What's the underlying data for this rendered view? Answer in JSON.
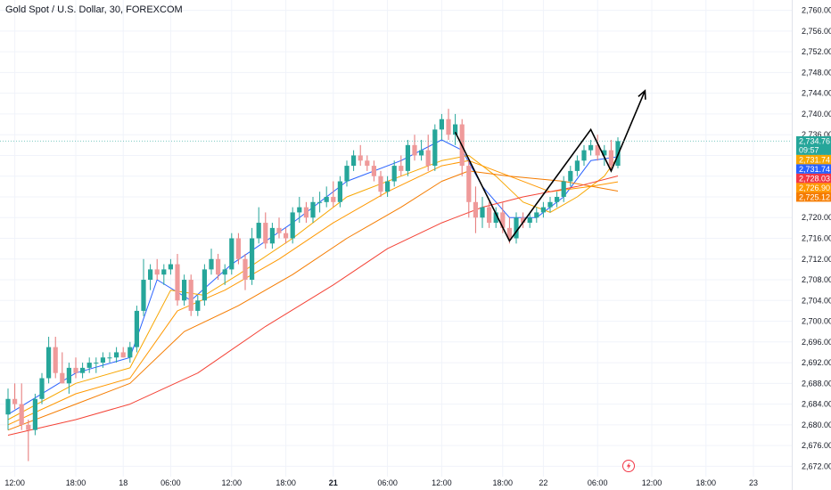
{
  "header": {
    "title": "Gold Spot / U.S. Dollar, 30, FOREXCOM"
  },
  "chart_data": {
    "type": "candlestick",
    "title": "Gold Spot / U.S. Dollar, 30, FOREXCOM",
    "ylim": [
      2670,
      2762
    ],
    "xlim": [
      0,
      102
    ],
    "y_ticks": [
      2672,
      2676,
      2680,
      2684,
      2688,
      2692,
      2696,
      2700,
      2704,
      2708,
      2712,
      2716,
      2720,
      2724,
      2728,
      2732,
      2736,
      2740,
      2744,
      2748,
      2752,
      2756,
      2760
    ],
    "y_tick_labels": [
      "2,672.00",
      "2,676.00",
      "2,680.00",
      "2,684.00",
      "2,688.00",
      "2,692.00",
      "2,696.00",
      "2,700.00",
      "2,704.00",
      "2,708.00",
      "2,712.00",
      "2,716.00",
      "2,720.00",
      "2,724.00",
      "2,728.00",
      "2,732.00",
      "2,736.00",
      "2,740.00",
      "2,744.00",
      "2,748.00",
      "2,752.00",
      "2,756.00",
      "2,760.00"
    ],
    "x_ticks": [
      {
        "x": 1,
        "label": "12:00",
        "bold": false
      },
      {
        "x": 10,
        "label": "18:00",
        "bold": false
      },
      {
        "x": 17,
        "label": "18",
        "bold": false
      },
      {
        "x": 24,
        "label": "06:00",
        "bold": false
      },
      {
        "x": 33,
        "label": "12:00",
        "bold": false
      },
      {
        "x": 41,
        "label": "18:00",
        "bold": false
      },
      {
        "x": 48,
        "label": "21",
        "bold": true
      },
      {
        "x": 56,
        "label": "06:00",
        "bold": false
      },
      {
        "x": 64,
        "label": "12:00",
        "bold": false
      },
      {
        "x": 73,
        "label": "18:00",
        "bold": false
      },
      {
        "x": 79,
        "label": "22",
        "bold": false
      },
      {
        "x": 87,
        "label": "06:00",
        "bold": false
      },
      {
        "x": 95,
        "label": "12:00",
        "bold": false
      },
      {
        "x": 103,
        "label": "18:00",
        "bold": false
      },
      {
        "x": 110,
        "label": "23",
        "bold": false
      }
    ],
    "candles": [
      {
        "x": 0,
        "o": 2682,
        "h": 2687,
        "l": 2679,
        "c": 2685
      },
      {
        "x": 1,
        "o": 2685,
        "h": 2688,
        "l": 2683,
        "c": 2684
      },
      {
        "x": 2,
        "o": 2684,
        "h": 2688,
        "l": 2679,
        "c": 2680
      },
      {
        "x": 3,
        "o": 2680,
        "h": 2681,
        "l": 2673,
        "c": 2679
      },
      {
        "x": 4,
        "o": 2679,
        "h": 2686,
        "l": 2678,
        "c": 2685
      },
      {
        "x": 5,
        "o": 2685,
        "h": 2690,
        "l": 2684,
        "c": 2689
      },
      {
        "x": 6,
        "o": 2689,
        "h": 2697,
        "l": 2688,
        "c": 2695
      },
      {
        "x": 7,
        "o": 2695,
        "h": 2697,
        "l": 2689,
        "c": 2690
      },
      {
        "x": 8,
        "o": 2690,
        "h": 2694,
        "l": 2688,
        "c": 2688
      },
      {
        "x": 9,
        "o": 2688,
        "h": 2692,
        "l": 2686,
        "c": 2691
      },
      {
        "x": 10,
        "o": 2691,
        "h": 2693,
        "l": 2689,
        "c": 2690
      },
      {
        "x": 11,
        "o": 2690,
        "h": 2692,
        "l": 2689,
        "c": 2691
      },
      {
        "x": 12,
        "o": 2691,
        "h": 2693,
        "l": 2690,
        "c": 2692
      },
      {
        "x": 13,
        "o": 2692,
        "h": 2693,
        "l": 2690,
        "c": 2692
      },
      {
        "x": 14,
        "o": 2692,
        "h": 2694,
        "l": 2691,
        "c": 2693
      },
      {
        "x": 15,
        "o": 2693,
        "h": 2694,
        "l": 2692,
        "c": 2693
      },
      {
        "x": 16,
        "o": 2693,
        "h": 2695,
        "l": 2692,
        "c": 2694
      },
      {
        "x": 17,
        "o": 2694,
        "h": 2695,
        "l": 2693,
        "c": 2693
      },
      {
        "x": 18,
        "o": 2693,
        "h": 2696,
        "l": 2692,
        "c": 2695
      },
      {
        "x": 19,
        "o": 2695,
        "h": 2703,
        "l": 2694,
        "c": 2702
      },
      {
        "x": 20,
        "o": 2702,
        "h": 2712,
        "l": 2701,
        "c": 2708
      },
      {
        "x": 21,
        "o": 2708,
        "h": 2711,
        "l": 2706,
        "c": 2710
      },
      {
        "x": 22,
        "o": 2710,
        "h": 2712,
        "l": 2708,
        "c": 2709
      },
      {
        "x": 23,
        "o": 2709,
        "h": 2711,
        "l": 2707,
        "c": 2710
      },
      {
        "x": 24,
        "o": 2710,
        "h": 2712,
        "l": 2709,
        "c": 2711
      },
      {
        "x": 25,
        "o": 2711,
        "h": 2713,
        "l": 2703,
        "c": 2704
      },
      {
        "x": 26,
        "o": 2704,
        "h": 2709,
        "l": 2703,
        "c": 2708
      },
      {
        "x": 27,
        "o": 2708,
        "h": 2709,
        "l": 2701,
        "c": 2702
      },
      {
        "x": 28,
        "o": 2702,
        "h": 2705,
        "l": 2701,
        "c": 2704
      },
      {
        "x": 29,
        "o": 2704,
        "h": 2711,
        "l": 2703,
        "c": 2710
      },
      {
        "x": 30,
        "o": 2710,
        "h": 2714,
        "l": 2709,
        "c": 2712
      },
      {
        "x": 31,
        "o": 2712,
        "h": 2713,
        "l": 2708,
        "c": 2709
      },
      {
        "x": 32,
        "o": 2709,
        "h": 2711,
        "l": 2707,
        "c": 2710
      },
      {
        "x": 33,
        "o": 2710,
        "h": 2717,
        "l": 2709,
        "c": 2716
      },
      {
        "x": 34,
        "o": 2716,
        "h": 2717,
        "l": 2711,
        "c": 2712
      },
      {
        "x": 35,
        "o": 2712,
        "h": 2713,
        "l": 2706,
        "c": 2708
      },
      {
        "x": 36,
        "o": 2708,
        "h": 2718,
        "l": 2707,
        "c": 2716
      },
      {
        "x": 37,
        "o": 2716,
        "h": 2722,
        "l": 2715,
        "c": 2719
      },
      {
        "x": 38,
        "o": 2719,
        "h": 2721,
        "l": 2714,
        "c": 2715
      },
      {
        "x": 39,
        "o": 2715,
        "h": 2719,
        "l": 2714,
        "c": 2718
      },
      {
        "x": 40,
        "o": 2718,
        "h": 2720,
        "l": 2716,
        "c": 2717
      },
      {
        "x": 41,
        "o": 2717,
        "h": 2718,
        "l": 2715,
        "c": 2716
      },
      {
        "x": 42,
        "o": 2716,
        "h": 2722,
        "l": 2715,
        "c": 2721
      },
      {
        "x": 43,
        "o": 2721,
        "h": 2724,
        "l": 2719,
        "c": 2722
      },
      {
        "x": 44,
        "o": 2722,
        "h": 2723,
        "l": 2719,
        "c": 2720
      },
      {
        "x": 45,
        "o": 2720,
        "h": 2724,
        "l": 2719,
        "c": 2723
      },
      {
        "x": 46,
        "o": 2723,
        "h": 2725,
        "l": 2721,
        "c": 2723
      },
      {
        "x": 47,
        "o": 2723,
        "h": 2726,
        "l": 2722,
        "c": 2724
      },
      {
        "x": 48,
        "o": 2724,
        "h": 2727,
        "l": 2722,
        "c": 2723
      },
      {
        "x": 49,
        "o": 2723,
        "h": 2728,
        "l": 2722,
        "c": 2727
      },
      {
        "x": 50,
        "o": 2727,
        "h": 2731,
        "l": 2726,
        "c": 2730
      },
      {
        "x": 51,
        "o": 2730,
        "h": 2733,
        "l": 2729,
        "c": 2732
      },
      {
        "x": 52,
        "o": 2732,
        "h": 2734,
        "l": 2730,
        "c": 2731
      },
      {
        "x": 53,
        "o": 2731,
        "h": 2732,
        "l": 2729,
        "c": 2730
      },
      {
        "x": 54,
        "o": 2730,
        "h": 2731,
        "l": 2727,
        "c": 2728
      },
      {
        "x": 55,
        "o": 2728,
        "h": 2729,
        "l": 2724,
        "c": 2725
      },
      {
        "x": 56,
        "o": 2725,
        "h": 2728,
        "l": 2724,
        "c": 2727
      },
      {
        "x": 57,
        "o": 2727,
        "h": 2731,
        "l": 2726,
        "c": 2730
      },
      {
        "x": 58,
        "o": 2730,
        "h": 2732,
        "l": 2728,
        "c": 2729
      },
      {
        "x": 59,
        "o": 2729,
        "h": 2735,
        "l": 2728,
        "c": 2734
      },
      {
        "x": 60,
        "o": 2734,
        "h": 2736,
        "l": 2731,
        "c": 2732
      },
      {
        "x": 61,
        "o": 2732,
        "h": 2735,
        "l": 2731,
        "c": 2733
      },
      {
        "x": 62,
        "o": 2733,
        "h": 2736,
        "l": 2729,
        "c": 2730
      },
      {
        "x": 63,
        "o": 2730,
        "h": 2738,
        "l": 2729,
        "c": 2737
      },
      {
        "x": 64,
        "o": 2737,
        "h": 2740,
        "l": 2735,
        "c": 2739
      },
      {
        "x": 65,
        "o": 2739,
        "h": 2741,
        "l": 2735,
        "c": 2736
      },
      {
        "x": 66,
        "o": 2736,
        "h": 2740,
        "l": 2734,
        "c": 2738
      },
      {
        "x": 67,
        "o": 2738,
        "h": 2739,
        "l": 2728,
        "c": 2730
      },
      {
        "x": 68,
        "o": 2730,
        "h": 2731,
        "l": 2720,
        "c": 2723
      },
      {
        "x": 69,
        "o": 2723,
        "h": 2726,
        "l": 2717,
        "c": 2720
      },
      {
        "x": 70,
        "o": 2720,
        "h": 2724,
        "l": 2718,
        "c": 2722
      },
      {
        "x": 71,
        "o": 2722,
        "h": 2723,
        "l": 2718,
        "c": 2719
      },
      {
        "x": 72,
        "o": 2719,
        "h": 2722,
        "l": 2718,
        "c": 2721
      },
      {
        "x": 73,
        "o": 2721,
        "h": 2723,
        "l": 2717,
        "c": 2718
      },
      {
        "x": 74,
        "o": 2718,
        "h": 2720,
        "l": 2715,
        "c": 2716
      },
      {
        "x": 75,
        "o": 2716,
        "h": 2721,
        "l": 2715,
        "c": 2720
      },
      {
        "x": 76,
        "o": 2720,
        "h": 2721,
        "l": 2718,
        "c": 2719
      },
      {
        "x": 77,
        "o": 2719,
        "h": 2721,
        "l": 2718,
        "c": 2720
      },
      {
        "x": 78,
        "o": 2720,
        "h": 2722,
        "l": 2719,
        "c": 2721
      },
      {
        "x": 79,
        "o": 2721,
        "h": 2723,
        "l": 2720,
        "c": 2722
      },
      {
        "x": 80,
        "o": 2722,
        "h": 2724,
        "l": 2721,
        "c": 2723
      },
      {
        "x": 81,
        "o": 2723,
        "h": 2725,
        "l": 2722,
        "c": 2724
      },
      {
        "x": 82,
        "o": 2724,
        "h": 2728,
        "l": 2723,
        "c": 2727
      },
      {
        "x": 83,
        "o": 2727,
        "h": 2730,
        "l": 2726,
        "c": 2729
      },
      {
        "x": 84,
        "o": 2729,
        "h": 2732,
        "l": 2728,
        "c": 2731
      },
      {
        "x": 85,
        "o": 2731,
        "h": 2734,
        "l": 2730,
        "c": 2733
      },
      {
        "x": 86,
        "o": 2733,
        "h": 2735,
        "l": 2732,
        "c": 2734
      },
      {
        "x": 87,
        "o": 2734,
        "h": 2736,
        "l": 2731,
        "c": 2732
      },
      {
        "x": 88,
        "o": 2732,
        "h": 2734,
        "l": 2730,
        "c": 2733
      },
      {
        "x": 89,
        "o": 2733,
        "h": 2735,
        "l": 2729,
        "c": 2730
      },
      {
        "x": 90,
        "o": 2730,
        "h": 2735.5,
        "l": 2729.5,
        "c": 2734.76
      }
    ],
    "moving_averages": [
      {
        "color": "#2962ff",
        "points": [
          [
            0,
            2682
          ],
          [
            10,
            2690
          ],
          [
            18,
            2693
          ],
          [
            22,
            2708
          ],
          [
            27,
            2704
          ],
          [
            33,
            2711
          ],
          [
            42,
            2719
          ],
          [
            50,
            2727
          ],
          [
            58,
            2731
          ],
          [
            64,
            2735
          ],
          [
            67,
            2733
          ],
          [
            70,
            2726
          ],
          [
            74,
            2720
          ],
          [
            78,
            2720
          ],
          [
            82,
            2724
          ],
          [
            86,
            2731
          ],
          [
            90,
            2731.74
          ]
        ]
      },
      {
        "color": "#f7a600",
        "points": [
          [
            0,
            2681
          ],
          [
            10,
            2688
          ],
          [
            18,
            2691
          ],
          [
            24,
            2706
          ],
          [
            29,
            2705
          ],
          [
            34,
            2709
          ],
          [
            42,
            2716
          ],
          [
            50,
            2724
          ],
          [
            58,
            2728
          ],
          [
            64,
            2731
          ],
          [
            68,
            2732
          ],
          [
            72,
            2728
          ],
          [
            76,
            2723
          ],
          [
            80,
            2721
          ],
          [
            84,
            2724
          ],
          [
            88,
            2728
          ],
          [
            90,
            2731.74
          ]
        ]
      },
      {
        "color": "#ff9800",
        "points": [
          [
            0,
            2680
          ],
          [
            10,
            2686
          ],
          [
            18,
            2689
          ],
          [
            25,
            2702
          ],
          [
            32,
            2706
          ],
          [
            40,
            2712
          ],
          [
            48,
            2719
          ],
          [
            56,
            2725
          ],
          [
            64,
            2730
          ],
          [
            68,
            2731
          ],
          [
            74,
            2728
          ],
          [
            80,
            2725
          ],
          [
            86,
            2726
          ],
          [
            90,
            2726.9
          ]
        ]
      },
      {
        "color": "#f57c00",
        "points": [
          [
            0,
            2679
          ],
          [
            10,
            2684
          ],
          [
            18,
            2688
          ],
          [
            26,
            2698
          ],
          [
            34,
            2703
          ],
          [
            42,
            2709
          ],
          [
            50,
            2716
          ],
          [
            58,
            2722
          ],
          [
            64,
            2727
          ],
          [
            68,
            2729
          ],
          [
            74,
            2728
          ],
          [
            82,
            2727
          ],
          [
            90,
            2725.12
          ]
        ]
      },
      {
        "color": "#f44336",
        "points": [
          [
            0,
            2678
          ],
          [
            10,
            2681
          ],
          [
            18,
            2684
          ],
          [
            28,
            2690
          ],
          [
            38,
            2699
          ],
          [
            48,
            2707
          ],
          [
            56,
            2714
          ],
          [
            64,
            2719
          ],
          [
            70,
            2722
          ],
          [
            76,
            2724
          ],
          [
            84,
            2726
          ],
          [
            90,
            2728.03
          ]
        ]
      }
    ],
    "drawing_path": [
      [
        66,
        2736.5
      ],
      [
        74,
        2715.5
      ],
      [
        86,
        2737
      ],
      [
        89,
        2729
      ],
      [
        94,
        2744.5
      ]
    ],
    "current_price": 2734.76,
    "price_tags": [
      {
        "value": 2734.76,
        "label": "2,734.76",
        "sub": "09:57",
        "color": "#26a69a"
      },
      {
        "value": 2731.74,
        "label": "2,731.74",
        "color": "#f7a600"
      },
      {
        "value": 2731.74,
        "label": "2,731.74",
        "color": "#2962ff"
      },
      {
        "value": 2728.03,
        "label": "2,728.03",
        "color": "#f23645"
      },
      {
        "value": 2726.9,
        "label": "2,726.90",
        "color": "#ff9800"
      },
      {
        "value": 2725.12,
        "label": "2,725.12",
        "color": "#f57c00"
      }
    ],
    "colors": {
      "up": "#26a69a",
      "down": "#ef9a9a",
      "down_wick": "#e57373",
      "grid": "#f0f3fa",
      "axis_text": "#131722",
      "drawing": "#000000"
    }
  }
}
